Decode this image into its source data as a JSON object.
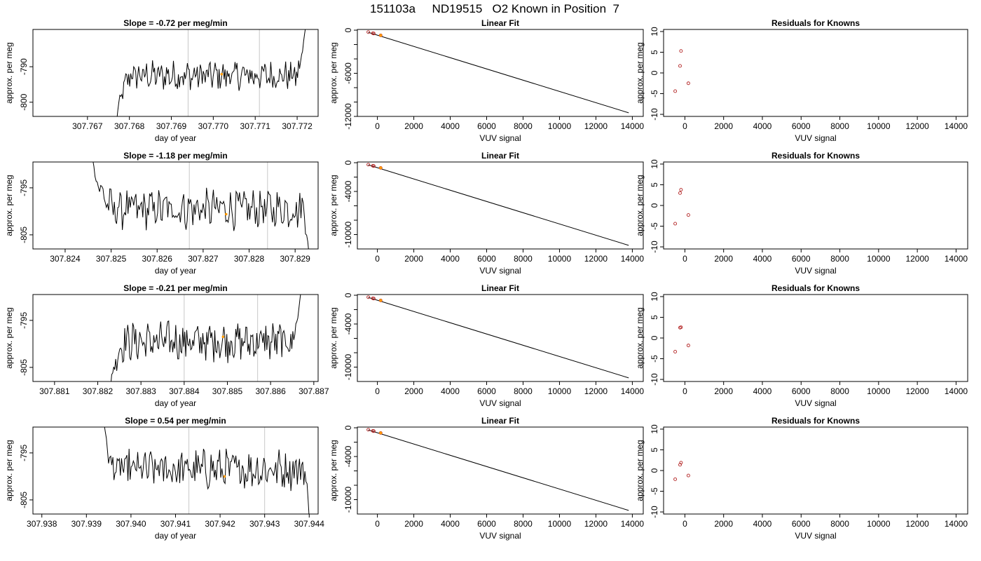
{
  "figure": {
    "title": "151103a     ND19515   O2 Known in Position  7"
  },
  "colors": {
    "trace": "#000000",
    "marker_vertical": "#c8c8c8",
    "highlight": "#ff9900",
    "known_point": "#b22222",
    "frame": "#000000"
  },
  "chart_data": [
    {
      "type": "line",
      "row": 1,
      "panel": "time-series",
      "title": "Slope =  -0.72  per meg/min",
      "xlabel": "day of year",
      "ylabel": "approx. per meg",
      "xlim": [
        307.7657,
        307.7725
      ],
      "ylim": [
        -804,
        -779.5
      ],
      "xticks": [
        307.767,
        307.768,
        307.769,
        307.77,
        307.771,
        307.772
      ],
      "xtick_labels": [
        "307.767",
        "307.768",
        "307.769",
        "307.770",
        "307.771",
        "307.772"
      ],
      "yticks": [
        -790,
        -800
      ],
      "ytick_labels": [
        "-790",
        "-800"
      ],
      "vlines": [
        307.7694,
        307.7711
      ],
      "highlight": {
        "x": 307.7702,
        "y": -792.1
      },
      "trace_x_range": [
        307.7677,
        307.7722
      ],
      "trace_start_y": -805,
      "trace_end_y": -779,
      "trace_level": -792.5,
      "lead_in_x": 307.768,
      "lead_out_x": 307.772
    },
    {
      "type": "line",
      "row": 1,
      "panel": "linear-fit",
      "title": "Linear Fit",
      "xlabel": "VUV signal",
      "ylabel": "approx. per meg",
      "xlim": [
        -1100,
        14600
      ],
      "ylim": [
        -12000,
        100
      ],
      "xticks": [
        0,
        2000,
        4000,
        6000,
        8000,
        10000,
        12000,
        14000
      ],
      "xtick_labels": [
        "0",
        "2000",
        "4000",
        "6000",
        "8000",
        "10000",
        "12000",
        "14000"
      ],
      "yticks": [
        0,
        -6000,
        -12000
      ],
      "ytick_labels": [
        "0",
        "-6000",
        "-12000"
      ],
      "minor_yticks": [
        -2000,
        -4000,
        -8000,
        -10000
      ],
      "fit_line": {
        "x": [
          -500,
          13800
        ],
        "y": [
          -305,
          -11500
        ]
      },
      "points": [
        {
          "x": -500,
          "y": -270
        },
        {
          "x": -250,
          "y": -430
        },
        {
          "x": -200,
          "y": -460
        },
        {
          "x": 180,
          "y": -720
        }
      ],
      "highlight": {
        "x": 180,
        "y": -720
      }
    },
    {
      "type": "scatter",
      "row": 1,
      "panel": "residuals",
      "title": "Residuals for Knowns",
      "xlabel": "VUV signal",
      "ylabel": "approx. per meg",
      "xlim": [
        -1100,
        14600
      ],
      "ylim": [
        -10.5,
        10.5
      ],
      "xticks": [
        0,
        2000,
        4000,
        6000,
        8000,
        10000,
        12000,
        14000
      ],
      "xtick_labels": [
        "0",
        "2000",
        "4000",
        "6000",
        "8000",
        "10000",
        "12000",
        "14000"
      ],
      "yticks": [
        10,
        5,
        0,
        -5,
        -10
      ],
      "ytick_labels": [
        "10",
        "5",
        "0",
        "-5",
        "-10"
      ],
      "points": [
        {
          "x": -500,
          "y": -4.4
        },
        {
          "x": -250,
          "y": 1.7
        },
        {
          "x": -200,
          "y": 5.3
        },
        {
          "x": 180,
          "y": -2.5
        }
      ]
    },
    {
      "type": "line",
      "row": 2,
      "panel": "time-series",
      "title": "Slope =  -1.18  per meg/min",
      "xlabel": "day of year",
      "ylabel": "approx. per meg",
      "xlim": [
        307.8233,
        307.8295
      ],
      "ylim": [
        -808,
        -789.5
      ],
      "xticks": [
        307.824,
        307.825,
        307.826,
        307.827,
        307.828,
        307.829
      ],
      "xtick_labels": [
        "307.824",
        "307.825",
        "307.826",
        "307.827",
        "307.828",
        "307.829"
      ],
      "yticks": [
        -795,
        -805
      ],
      "ytick_labels": [
        "-795",
        "-805"
      ],
      "vlines": [
        307.8267,
        307.8284
      ],
      "highlight": {
        "x": 307.8275,
        "y": -800.6
      },
      "trace_x_range": [
        307.8246,
        307.8293
      ],
      "trace_start_y": -789,
      "trace_end_y": -809,
      "trace_level": -799.5,
      "lead_in_x": 307.825,
      "lead_out_x": 307.8292
    },
    {
      "type": "line",
      "row": 2,
      "panel": "linear-fit",
      "title": "Linear Fit",
      "xlabel": "VUV signal",
      "ylabel": "approx. per meg",
      "xlim": [
        -1100,
        14600
      ],
      "ylim": [
        -12000,
        100
      ],
      "xticks": [
        0,
        2000,
        4000,
        6000,
        8000,
        10000,
        12000,
        14000
      ],
      "xtick_labels": [
        "0",
        "2000",
        "4000",
        "6000",
        "8000",
        "10000",
        "12000",
        "14000"
      ],
      "yticks": [
        0,
        -4000,
        -10000
      ],
      "ytick_labels": [
        "0",
        "-4000",
        "-10000"
      ],
      "minor_yticks": [
        -2000,
        -6000,
        -8000
      ],
      "fit_line": {
        "x": [
          -500,
          13800
        ],
        "y": [
          -305,
          -11500
        ]
      },
      "points": [
        {
          "x": -500,
          "y": -270
        },
        {
          "x": -250,
          "y": -430
        },
        {
          "x": -200,
          "y": -460
        },
        {
          "x": 180,
          "y": -720
        }
      ],
      "highlight": {
        "x": 180,
        "y": -720
      }
    },
    {
      "type": "scatter",
      "row": 2,
      "panel": "residuals",
      "title": "Residuals for Knowns",
      "xlabel": "VUV signal",
      "ylabel": "approx. per meg",
      "xlim": [
        -1100,
        14600
      ],
      "ylim": [
        -10.5,
        10.5
      ],
      "xticks": [
        0,
        2000,
        4000,
        6000,
        8000,
        10000,
        12000,
        14000
      ],
      "xtick_labels": [
        "0",
        "2000",
        "4000",
        "6000",
        "8000",
        "10000",
        "12000",
        "14000"
      ],
      "yticks": [
        10,
        5,
        0,
        -5,
        -10
      ],
      "ytick_labels": [
        "10",
        "5",
        "0",
        "-5",
        "-10"
      ],
      "points": [
        {
          "x": -500,
          "y": -4.4
        },
        {
          "x": -250,
          "y": 3.0
        },
        {
          "x": -200,
          "y": 3.8
        },
        {
          "x": 180,
          "y": -2.3
        }
      ]
    },
    {
      "type": "line",
      "row": 3,
      "panel": "time-series",
      "title": "Slope =  -0.21  per meg/min",
      "xlabel": "day of year",
      "ylabel": "approx. per meg",
      "xlim": [
        307.8805,
        307.8871
      ],
      "ylim": [
        -808,
        -789.5
      ],
      "xticks": [
        307.881,
        307.882,
        307.883,
        307.884,
        307.885,
        307.886,
        307.887
      ],
      "xtick_labels": [
        "307.881",
        "307.882",
        "307.883",
        "307.884",
        "307.885",
        "307.886",
        "307.887"
      ],
      "yticks": [
        -795,
        -805
      ],
      "ytick_labels": [
        "-795",
        "-805"
      ],
      "vlines": [
        307.884,
        307.8857
      ],
      "highlight": {
        "x": 307.8849,
        "y": -798.5
      },
      "trace_x_range": [
        307.8823,
        307.8867
      ],
      "trace_start_y": -809,
      "trace_end_y": -789,
      "trace_level": -799.5,
      "lead_in_x": 307.8826,
      "lead_out_x": 307.8865
    },
    {
      "type": "line",
      "row": 3,
      "panel": "linear-fit",
      "title": "Linear Fit",
      "xlabel": "VUV signal",
      "ylabel": "approx. per meg",
      "xlim": [
        -1100,
        14600
      ],
      "ylim": [
        -12000,
        100
      ],
      "xticks": [
        0,
        2000,
        4000,
        6000,
        8000,
        10000,
        12000,
        14000
      ],
      "xtick_labels": [
        "0",
        "2000",
        "4000",
        "6000",
        "8000",
        "10000",
        "12000",
        "14000"
      ],
      "yticks": [
        0,
        -4000,
        -10000
      ],
      "ytick_labels": [
        "0",
        "-4000",
        "-10000"
      ],
      "minor_yticks": [
        -2000,
        -6000,
        -8000
      ],
      "fit_line": {
        "x": [
          -500,
          13800
        ],
        "y": [
          -305,
          -11500
        ]
      },
      "points": [
        {
          "x": -500,
          "y": -270
        },
        {
          "x": -250,
          "y": -430
        },
        {
          "x": -200,
          "y": -460
        },
        {
          "x": 180,
          "y": -720
        }
      ],
      "highlight": {
        "x": 180,
        "y": -720
      }
    },
    {
      "type": "scatter",
      "row": 3,
      "panel": "residuals",
      "title": "Residuals for Knowns",
      "xlabel": "VUV signal",
      "ylabel": "approx. per meg",
      "xlim": [
        -1100,
        14600
      ],
      "ylim": [
        -10.5,
        10.5
      ],
      "xticks": [
        0,
        2000,
        4000,
        6000,
        8000,
        10000,
        12000,
        14000
      ],
      "xtick_labels": [
        "0",
        "2000",
        "4000",
        "6000",
        "8000",
        "10000",
        "12000",
        "14000"
      ],
      "yticks": [
        10,
        5,
        0,
        -5,
        -10
      ],
      "ytick_labels": [
        "10",
        "5",
        "0",
        "-5",
        "-10"
      ],
      "points": [
        {
          "x": -500,
          "y": -3.3
        },
        {
          "x": -250,
          "y": 2.5
        },
        {
          "x": -200,
          "y": 2.6
        },
        {
          "x": 180,
          "y": -1.8
        }
      ]
    },
    {
      "type": "line",
      "row": 4,
      "panel": "time-series",
      "title": "Slope =  0.54  per meg/min",
      "xlabel": "day of year",
      "ylabel": "approx. per meg",
      "xlim": [
        307.9378,
        307.9442
      ],
      "ylim": [
        -808,
        -789.5
      ],
      "xticks": [
        307.938,
        307.939,
        307.94,
        307.941,
        307.942,
        307.943,
        307.944
      ],
      "xtick_labels": [
        "307.938",
        "307.939",
        "307.940",
        "307.941",
        "307.942",
        "307.943",
        "307.944"
      ],
      "yticks": [
        -795,
        -805
      ],
      "ytick_labels": [
        "-795",
        "-805"
      ],
      "vlines": [
        307.9413,
        307.943
      ],
      "highlight": {
        "x": 307.9421,
        "y": -800.0
      },
      "trace_x_range": [
        307.9394,
        307.944
      ],
      "trace_start_y": -789,
      "trace_end_y": -809,
      "trace_level": -798.5,
      "lead_in_x": 307.9396,
      "lead_out_x": 307.9439
    },
    {
      "type": "line",
      "row": 4,
      "panel": "linear-fit",
      "title": "Linear Fit",
      "xlabel": "VUV signal",
      "ylabel": "approx. per meg",
      "xlim": [
        -1100,
        14600
      ],
      "ylim": [
        -12000,
        100
      ],
      "xticks": [
        0,
        2000,
        4000,
        6000,
        8000,
        10000,
        12000,
        14000
      ],
      "xtick_labels": [
        "0",
        "2000",
        "4000",
        "6000",
        "8000",
        "10000",
        "12000",
        "14000"
      ],
      "yticks": [
        0,
        -4000,
        -10000
      ],
      "ytick_labels": [
        "0",
        "-4000",
        "-10000"
      ],
      "minor_yticks": [
        -2000,
        -6000,
        -8000
      ],
      "fit_line": {
        "x": [
          -500,
          13800
        ],
        "y": [
          -305,
          -11500
        ]
      },
      "points": [
        {
          "x": -500,
          "y": -270
        },
        {
          "x": -250,
          "y": -430
        },
        {
          "x": -200,
          "y": -460
        },
        {
          "x": 180,
          "y": -720
        }
      ],
      "highlight": {
        "x": 180,
        "y": -720
      }
    },
    {
      "type": "scatter",
      "row": 4,
      "panel": "residuals",
      "title": "Residuals for Knowns",
      "xlabel": "VUV signal",
      "ylabel": "approx. per meg",
      "xlim": [
        -1100,
        14600
      ],
      "ylim": [
        -10.5,
        10.5
      ],
      "xticks": [
        0,
        2000,
        4000,
        6000,
        8000,
        10000,
        12000,
        14000
      ],
      "xtick_labels": [
        "0",
        "2000",
        "4000",
        "6000",
        "8000",
        "10000",
        "12000",
        "14000"
      ],
      "yticks": [
        10,
        5,
        0,
        -5,
        -10
      ],
      "ytick_labels": [
        "10",
        "5",
        "0",
        "-5",
        "-10"
      ],
      "points": [
        {
          "x": -500,
          "y": -2.1
        },
        {
          "x": -250,
          "y": 1.4
        },
        {
          "x": -200,
          "y": 1.9
        },
        {
          "x": 180,
          "y": -1.2
        }
      ]
    }
  ]
}
